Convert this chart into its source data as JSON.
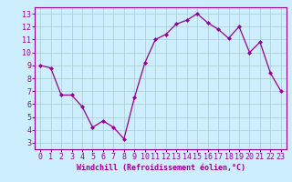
{
  "x": [
    0,
    1,
    2,
    3,
    4,
    5,
    6,
    7,
    8,
    9,
    10,
    11,
    12,
    13,
    14,
    15,
    16,
    17,
    18,
    19,
    20,
    21,
    22,
    23
  ],
  "y": [
    9.0,
    8.8,
    6.7,
    6.7,
    5.8,
    4.2,
    4.7,
    4.2,
    3.3,
    6.5,
    9.2,
    11.0,
    11.4,
    12.2,
    12.5,
    13.0,
    12.3,
    11.8,
    11.1,
    12.0,
    10.0,
    10.8,
    8.4,
    7.0
  ],
  "line_color": "#990099",
  "marker": "D",
  "marker_size": 2.0,
  "linewidth": 0.9,
  "bg_color": "#cceeff",
  "grid_color": "#aacccc",
  "xlabel": "Windchill (Refroidissement éolien,°C)",
  "xlabel_color": "#990099",
  "xlabel_fontsize": 6.0,
  "tick_color": "#990099",
  "tick_fontsize": 6.0,
  "xlim": [
    -0.5,
    23.5
  ],
  "ylim": [
    2.5,
    13.5
  ],
  "yticks": [
    3,
    4,
    5,
    6,
    7,
    8,
    9,
    10,
    11,
    12,
    13
  ],
  "xticks": [
    0,
    1,
    2,
    3,
    4,
    5,
    6,
    7,
    8,
    9,
    10,
    11,
    12,
    13,
    14,
    15,
    16,
    17,
    18,
    19,
    20,
    21,
    22,
    23
  ]
}
